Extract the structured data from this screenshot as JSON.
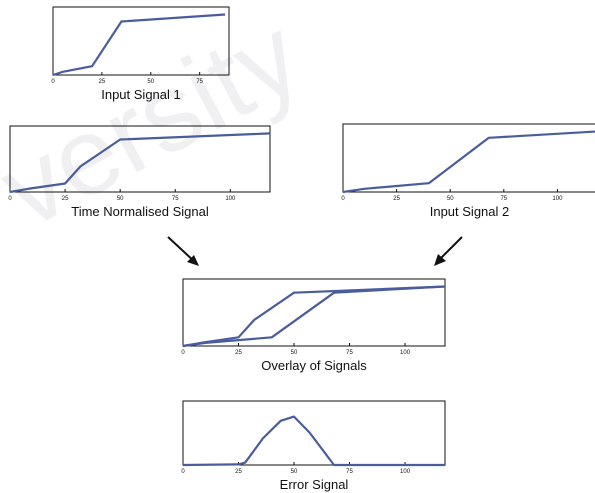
{
  "chart_data": [
    {
      "type": "line",
      "title": "Input Signal 1",
      "xticks": [
        "0",
        "25",
        "50",
        "75"
      ],
      "xlim": [
        0,
        90
      ],
      "ylim": [
        0,
        1
      ],
      "series": [
        {
          "x": [
            0,
            5,
            20,
            35,
            88
          ],
          "y": [
            0,
            0.05,
            0.14,
            0.85,
            0.96
          ]
        }
      ]
    },
    {
      "type": "line",
      "title": "Time Normalised Signal",
      "xticks": [
        "0",
        "25",
        "50",
        "75",
        "100"
      ],
      "xlim": [
        0,
        118
      ],
      "ylim": [
        0,
        1
      ],
      "series": [
        {
          "x": [
            0,
            8,
            25,
            32,
            50,
            118
          ],
          "y": [
            0,
            0.05,
            0.14,
            0.42,
            0.86,
            0.96
          ]
        }
      ]
    },
    {
      "type": "line",
      "title": "Input Signal 2",
      "xticks": [
        "0",
        "25",
        "50",
        "75",
        "100"
      ],
      "xlim": [
        0,
        118
      ],
      "ylim": [
        0,
        1
      ],
      "series": [
        {
          "x": [
            0,
            10,
            40,
            68,
            118
          ],
          "y": [
            0,
            0.05,
            0.14,
            0.86,
            0.96
          ]
        }
      ]
    },
    {
      "type": "line",
      "title": "Overlay of Signals",
      "xticks": [
        "0",
        "25",
        "50",
        "75",
        "100"
      ],
      "xlim": [
        0,
        118
      ],
      "ylim": [
        0,
        1
      ],
      "series": [
        {
          "x": [
            0,
            8,
            25,
            32,
            50,
            118
          ],
          "y": [
            0,
            0.05,
            0.14,
            0.42,
            0.86,
            0.96
          ]
        },
        {
          "x": [
            0,
            10,
            40,
            68,
            118
          ],
          "y": [
            0,
            0.05,
            0.14,
            0.86,
            0.96
          ]
        }
      ]
    },
    {
      "type": "line",
      "title": "Error Signal",
      "xticks": [
        "0",
        "25",
        "50",
        "75",
        "100"
      ],
      "xlim": [
        0,
        118
      ],
      "ylim": [
        0,
        1
      ],
      "series": [
        {
          "x": [
            0,
            25,
            28,
            36,
            44,
            50,
            57,
            68,
            118
          ],
          "y": [
            0,
            0.01,
            0.04,
            0.45,
            0.75,
            0.82,
            0.55,
            0,
            0
          ]
        }
      ]
    }
  ],
  "watermark": {
    "text": "versity",
    "color": "#e4e4ea"
  },
  "colors": {
    "signal": "#4a5c9c",
    "axes": "#111111"
  }
}
